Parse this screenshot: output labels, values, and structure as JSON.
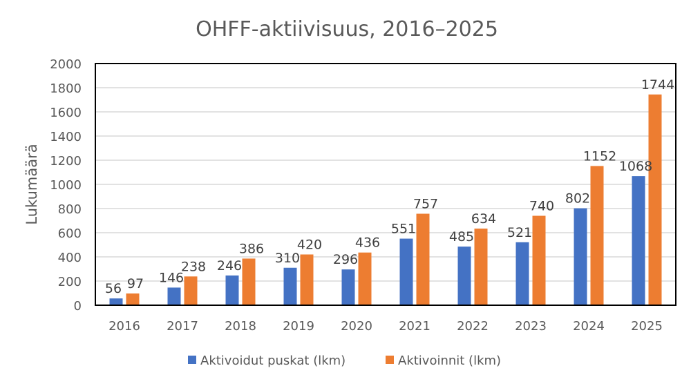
{
  "chart_data": {
    "type": "bar",
    "title": "OHFF-aktiivisuus, 2016–2025",
    "xlabel": "",
    "ylabel": "Lukumäärä",
    "ylim": [
      0,
      2000
    ],
    "yticks": [
      0,
      200,
      400,
      600,
      800,
      1000,
      1200,
      1400,
      1600,
      1800,
      2000
    ],
    "grid": true,
    "legend_position": "bottom",
    "categories": [
      "2016",
      "2017",
      "2018",
      "2019",
      "2020",
      "2021",
      "2022",
      "2023",
      "2024",
      "2025"
    ],
    "series": [
      {
        "name": "Aktivoidut puskat (lkm)",
        "color": "#4472C4",
        "values": [
          56,
          146,
          246,
          310,
          296,
          551,
          485,
          521,
          802,
          1068
        ]
      },
      {
        "name": "Aktivoinnit (lkm)",
        "color": "#ED7D31",
        "values": [
          97,
          238,
          386,
          420,
          436,
          757,
          634,
          740,
          1152,
          1744
        ]
      }
    ]
  }
}
